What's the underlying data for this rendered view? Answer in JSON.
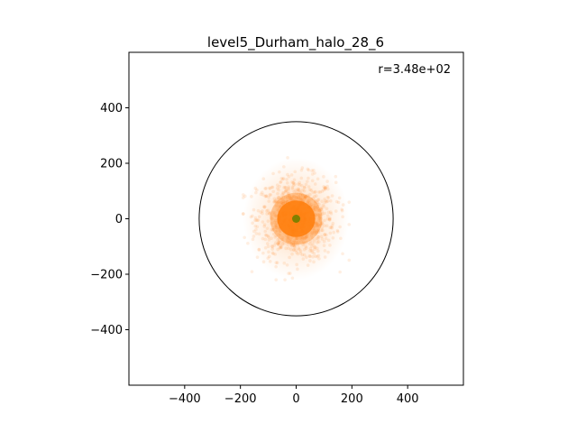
{
  "chart_data": {
    "type": "scatter",
    "title": "level5_Durham_halo_28_6",
    "annotation": "r=3.48e+02",
    "xlabel": "",
    "ylabel": "",
    "xlim": [
      -600,
      600
    ],
    "ylim": [
      -600,
      600
    ],
    "x_ticks": [
      -400,
      -200,
      0,
      200,
      400
    ],
    "x_tick_labels": [
      "−400",
      "−200",
      "0",
      "200",
      "400"
    ],
    "y_ticks": [
      -400,
      -200,
      0,
      200,
      400
    ],
    "y_tick_labels": [
      "−400",
      "−200",
      "0",
      "200",
      "400"
    ],
    "grid": false,
    "legend": "none",
    "circle": {
      "center": [
        0,
        0
      ],
      "radius": 348,
      "color": "#000000"
    },
    "particle_cloud": {
      "center": [
        0,
        0
      ],
      "dense_core_radius": 110,
      "extent_x": [
        -190,
        190
      ],
      "extent_y": [
        -220,
        220
      ],
      "color": "#ff7f0e",
      "opacity": "low"
    },
    "center_point": {
      "x": 0,
      "y": 0,
      "color": "#808000"
    }
  }
}
